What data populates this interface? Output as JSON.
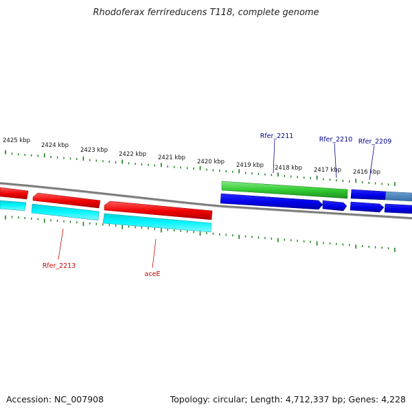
{
  "title": "Rhodoferax ferrireducens T118, complete genome",
  "footer": {
    "accession": "Accession: NC_007908",
    "summary": "Topology: circular; Length: 4,712,337 bp; Genes: 4,228"
  },
  "scale_labels": [
    "2425 kbp",
    "2424 kbp",
    "2423 kbp",
    "2422 kbp",
    "2421 kbp",
    "2420 kbp",
    "2419 kbp",
    "2418 kbp",
    "2417 kbp",
    "2416 kbp"
  ],
  "gene_labels": {
    "rfer_2211": "Rfer_2211",
    "rfer_2210": "Rfer_2210",
    "rfer_2209": "Rfer_2209",
    "rfer_2213": "Rfer_2213",
    "acee": "aceE"
  },
  "colors": {
    "forward_cds": "#e41a1c",
    "forward_gene": "#00e5ee",
    "reverse_cds": "#0000ee",
    "reverse_gene": "#33cc33",
    "backbone": "#808080",
    "tick": "#1a7a1a",
    "forward_label": "#cc0000",
    "reverse_label": "#00008b",
    "faded_blue": "#4a7fb5"
  }
}
